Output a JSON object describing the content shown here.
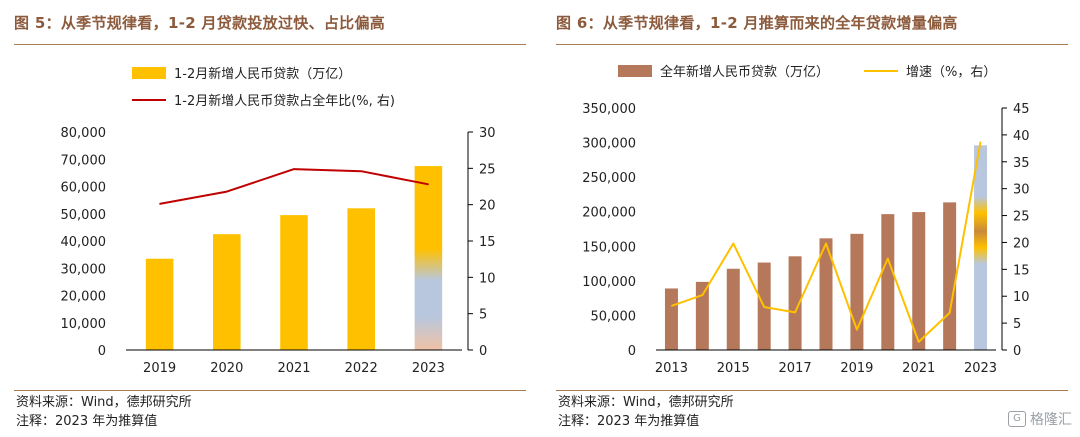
{
  "chart_data": [
    {
      "type": "bar",
      "title": "图 5：从季节规律看，1-2 月贷款投放过快、占比偏高",
      "categories": [
        "2019",
        "2020",
        "2021",
        "2022",
        "2023"
      ],
      "series": [
        {
          "name": "1-2月新增人民币贷款（万亿）",
          "type": "bar",
          "axis": "left",
          "values": [
            33500,
            42500,
            49500,
            52000,
            67500
          ]
        },
        {
          "name": "1-2月新增人民币贷款占全年比(%, 右)",
          "type": "line",
          "axis": "right",
          "values": [
            20.1,
            21.8,
            24.9,
            24.6,
            22.8
          ]
        }
      ],
      "ylim": [
        0,
        80000
      ],
      "y_ticks": [
        "0",
        "10,000",
        "20,000",
        "30,000",
        "40,000",
        "50,000",
        "60,000",
        "70,000",
        "80,000"
      ],
      "y2lim": [
        0,
        30
      ],
      "y2_ticks": [
        "0",
        "5",
        "10",
        "15",
        "20",
        "25",
        "30"
      ],
      "legend_position": "top-left",
      "source": "资料来源：Wind，德邦研究所",
      "note": "注释：2023 年为推算值",
      "colors": {
        "bar": "#ffc000",
        "line": "#c00000"
      }
    },
    {
      "type": "bar",
      "title": "图 6：从季节规律看，1-2 月推算而来的全年贷款增量偏高",
      "categories": [
        "2013",
        "2014",
        "2015",
        "2016",
        "2017",
        "2018",
        "2019",
        "2020",
        "2021",
        "2022",
        "2023"
      ],
      "x_tick_labels": [
        "2013",
        "",
        "2015",
        "",
        "2017",
        "",
        "2019",
        "",
        "2021",
        "",
        "2023"
      ],
      "series": [
        {
          "name": "全年新增人民币贷款（万亿）",
          "type": "bar",
          "axis": "left",
          "values": [
            89000,
            98500,
            117500,
            126500,
            135500,
            161500,
            168000,
            196500,
            199500,
            213500,
            296000
          ]
        },
        {
          "name": "增速（%，右）",
          "type": "line",
          "axis": "right",
          "values": [
            8.2,
            10.2,
            19.8,
            8.0,
            7.0,
            19.8,
            3.8,
            17.0,
            1.5,
            6.9,
            38.7
          ]
        }
      ],
      "ylim": [
        0,
        350000
      ],
      "y_ticks": [
        "0",
        "50,000",
        "100,000",
        "150,000",
        "200,000",
        "250,000",
        "300,000",
        "350,000"
      ],
      "y2lim": [
        0,
        45
      ],
      "y2_ticks": [
        "0",
        "5",
        "10",
        "15",
        "20",
        "25",
        "30",
        "35",
        "40",
        "45"
      ],
      "legend_position": "top",
      "source": "资料来源：Wind，德邦研究所",
      "note": "注释：2023 年为推算值",
      "colors": {
        "bar": "#b5785a",
        "line": "#ffc000"
      }
    }
  ],
  "watermark": {
    "icon": "gelonghui-logo-icon",
    "text": "格隆汇"
  }
}
